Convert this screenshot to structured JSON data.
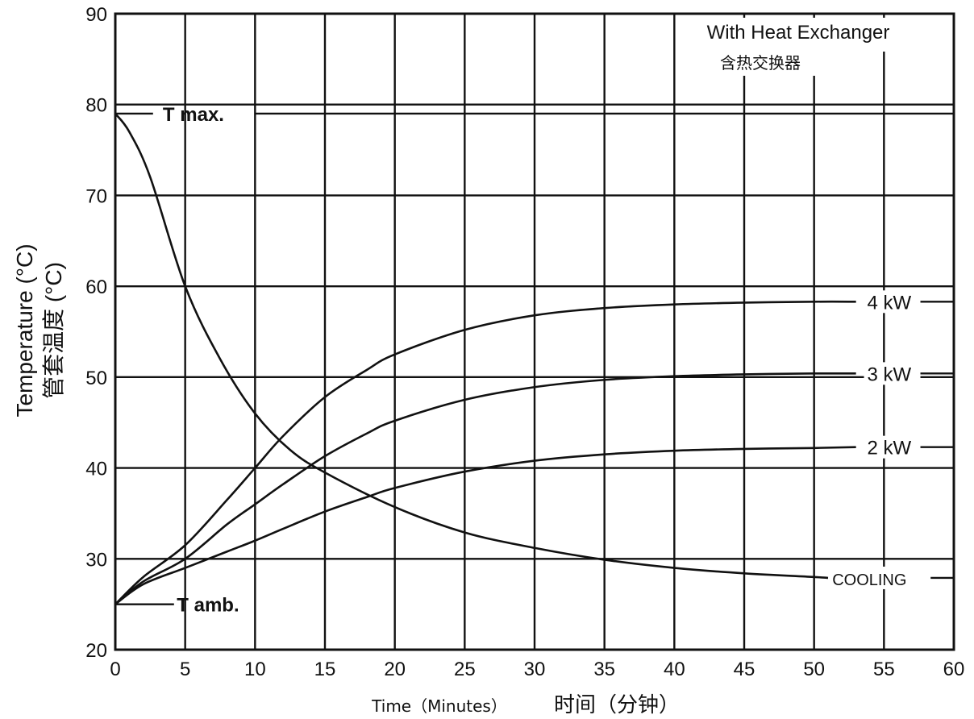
{
  "chart_data": {
    "type": "line",
    "title": "",
    "annotation_title": "With Heat Exchanger",
    "annotation_subtitle": "含热交换器",
    "xlabel": "Time（Minutes）",
    "xlabel_cn": "时间（分钟）",
    "ylabel": "Temperature (°C)",
    "ylabel_cn": "管套温度 (°C)",
    "xlim": [
      0,
      60
    ],
    "ylim": [
      20,
      90
    ],
    "xticks": [
      0,
      5,
      10,
      15,
      20,
      25,
      30,
      35,
      40,
      45,
      50,
      55,
      60
    ],
    "yticks": [
      20,
      30,
      40,
      50,
      60,
      70,
      80,
      90
    ],
    "grid": true,
    "reference_lines": [
      {
        "label": "T max.",
        "y": 79
      },
      {
        "label": "T amb.",
        "y": 25
      }
    ],
    "series": [
      {
        "name": "4 kW",
        "x": [
          0,
          2,
          5,
          8,
          10,
          12,
          15,
          18,
          20,
          25,
          30,
          35,
          40,
          45,
          50,
          53
        ],
        "y": [
          25,
          28,
          31.5,
          36.5,
          40,
          43.5,
          47.8,
          50.8,
          52.5,
          55.2,
          56.8,
          57.6,
          58.0,
          58.2,
          58.3,
          58.3
        ]
      },
      {
        "name": "3 kW",
        "x": [
          0,
          2,
          5,
          8,
          10,
          12,
          15,
          18,
          20,
          25,
          30,
          35,
          40,
          45,
          50,
          53
        ],
        "y": [
          25,
          27.5,
          30,
          33.8,
          36,
          38.2,
          41.3,
          43.8,
          45.2,
          47.5,
          48.9,
          49.7,
          50.1,
          50.3,
          50.4,
          50.4
        ]
      },
      {
        "name": "2 kW",
        "x": [
          0,
          2,
          5,
          8,
          10,
          12,
          15,
          18,
          20,
          25,
          30,
          35,
          40,
          45,
          50,
          53
        ],
        "y": [
          25,
          27.2,
          29,
          30.8,
          32,
          33.3,
          35.2,
          36.8,
          37.8,
          39.6,
          40.8,
          41.5,
          41.9,
          42.1,
          42.2,
          42.3
        ]
      },
      {
        "name": "COOLING",
        "x": [
          0,
          1,
          2.5,
          5,
          7.5,
          10,
          12.5,
          15,
          20,
          25,
          30,
          35,
          40,
          45,
          50,
          51
        ],
        "y": [
          79,
          77,
          72,
          60,
          52,
          46,
          42,
          39.5,
          35.7,
          32.9,
          31.2,
          29.9,
          29.0,
          28.4,
          28.0,
          27.9
        ]
      }
    ],
    "legend": "inline-right"
  }
}
